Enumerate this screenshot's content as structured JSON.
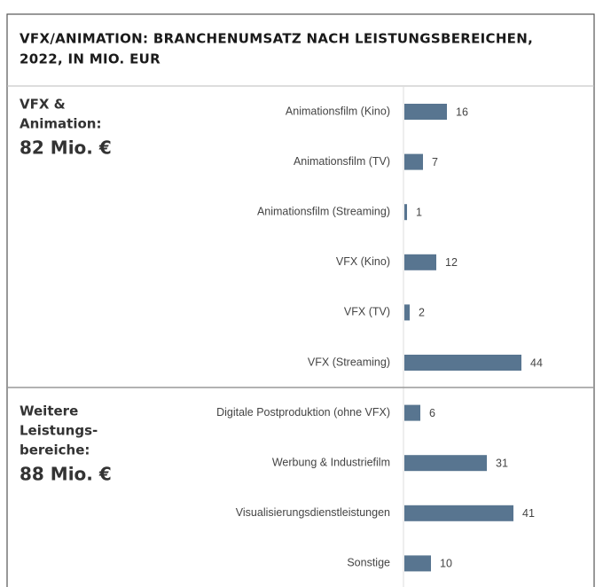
{
  "title_lines": [
    "VFX/ANIMATION: BRANCHENUMSATZ NACH LEISTUNGSBEREICHEN,",
    "2022, IN MIO. EUR"
  ],
  "chart_data": [
    {
      "type": "bar",
      "orientation": "horizontal",
      "color": "#587590",
      "group_label_lines": [
        "VFX &",
        "Animation:"
      ],
      "group_total": "82 Mio. €",
      "categories": [
        "Animationsfilm (Kino)",
        "Animationsfilm (TV)",
        "Animationsfilm (Streaming)",
        "VFX (Kino)",
        "VFX (TV)",
        "VFX (Streaming)"
      ],
      "values": [
        16,
        7,
        1,
        12,
        2,
        44
      ]
    },
    {
      "type": "bar",
      "orientation": "horizontal",
      "color": "#587590",
      "group_label_lines": [
        "Weitere",
        "Leistungs-",
        "bereiche:"
      ],
      "group_total": "88 Mio. €",
      "categories": [
        "Digitale Postproduktion (ohne VFX)",
        "Werbung & Industriefilm",
        "Visualisierungsdienstleistungen",
        "Sonstige"
      ],
      "values": [
        6,
        31,
        41,
        10
      ]
    }
  ]
}
